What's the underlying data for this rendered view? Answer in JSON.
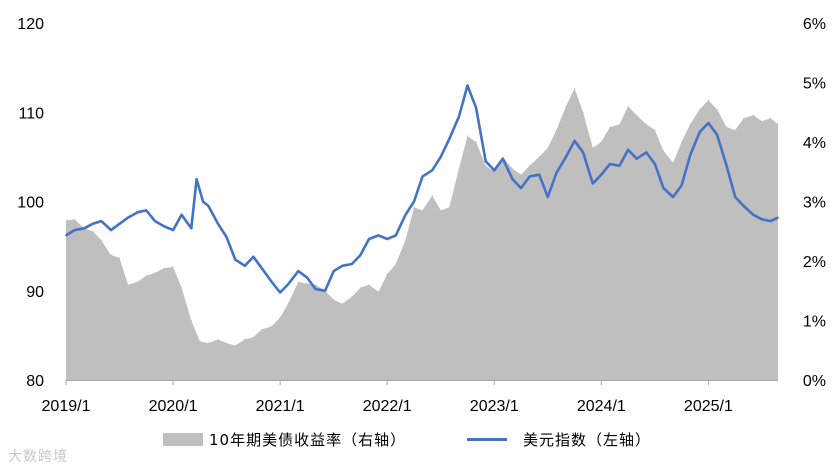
{
  "chart_data": {
    "type": "area",
    "title": "",
    "x_unit": "year",
    "x_range": [
      2019.0,
      2025.65
    ],
    "x_ticks": [
      {
        "x": 2019,
        "label": "2019/1"
      },
      {
        "x": 2020,
        "label": "2020/1"
      },
      {
        "x": 2021,
        "label": "2021/1"
      },
      {
        "x": 2022,
        "label": "2022/1"
      },
      {
        "x": 2023,
        "label": "2023/1"
      },
      {
        "x": 2024,
        "label": "2024/1"
      },
      {
        "x": 2025,
        "label": "2025/1"
      }
    ],
    "y_left": {
      "min": 80,
      "max": 120,
      "ticks": [
        "80",
        "90",
        "100",
        "110",
        "120"
      ]
    },
    "y_right": {
      "min": 0,
      "max": 6,
      "ticks": [
        "0%",
        "1%",
        "2%",
        "3%",
        "4%",
        "5%",
        "6%"
      ]
    },
    "grid": false,
    "legend_position": "bottom",
    "series": [
      {
        "name": "10年期美债收益率（右轴）",
        "type": "area",
        "axis": "right",
        "unit": "%",
        "color": "#bfbfbf",
        "points": [
          [
            2019.0,
            2.68
          ],
          [
            2019.08,
            2.7
          ],
          [
            2019.17,
            2.55
          ],
          [
            2019.25,
            2.5
          ],
          [
            2019.33,
            2.35
          ],
          [
            2019.42,
            2.1
          ],
          [
            2019.5,
            2.05
          ],
          [
            2019.58,
            1.6
          ],
          [
            2019.67,
            1.65
          ],
          [
            2019.75,
            1.75
          ],
          [
            2019.83,
            1.8
          ],
          [
            2019.92,
            1.88
          ],
          [
            2020.0,
            1.9
          ],
          [
            2020.08,
            1.55
          ],
          [
            2020.17,
            1.0
          ],
          [
            2020.25,
            0.65
          ],
          [
            2020.33,
            0.62
          ],
          [
            2020.42,
            0.68
          ],
          [
            2020.5,
            0.62
          ],
          [
            2020.58,
            0.58
          ],
          [
            2020.67,
            0.68
          ],
          [
            2020.75,
            0.72
          ],
          [
            2020.83,
            0.85
          ],
          [
            2020.92,
            0.9
          ],
          [
            2021.0,
            1.05
          ],
          [
            2021.08,
            1.3
          ],
          [
            2021.17,
            1.65
          ],
          [
            2021.25,
            1.62
          ],
          [
            2021.33,
            1.6
          ],
          [
            2021.42,
            1.5
          ],
          [
            2021.5,
            1.35
          ],
          [
            2021.58,
            1.28
          ],
          [
            2021.67,
            1.4
          ],
          [
            2021.75,
            1.55
          ],
          [
            2021.83,
            1.6
          ],
          [
            2021.92,
            1.48
          ],
          [
            2022.0,
            1.78
          ],
          [
            2022.08,
            1.95
          ],
          [
            2022.17,
            2.35
          ],
          [
            2022.25,
            2.9
          ],
          [
            2022.33,
            2.85
          ],
          [
            2022.42,
            3.1
          ],
          [
            2022.5,
            2.85
          ],
          [
            2022.58,
            2.9
          ],
          [
            2022.67,
            3.55
          ],
          [
            2022.75,
            4.1
          ],
          [
            2022.83,
            4.0
          ],
          [
            2022.92,
            3.6
          ],
          [
            2023.0,
            3.5
          ],
          [
            2023.08,
            3.75
          ],
          [
            2023.17,
            3.55
          ],
          [
            2023.25,
            3.45
          ],
          [
            2023.33,
            3.6
          ],
          [
            2023.42,
            3.75
          ],
          [
            2023.5,
            3.9
          ],
          [
            2023.58,
            4.2
          ],
          [
            2023.67,
            4.6
          ],
          [
            2023.75,
            4.9
          ],
          [
            2023.83,
            4.5
          ],
          [
            2023.92,
            3.9
          ],
          [
            2024.0,
            4.0
          ],
          [
            2024.08,
            4.25
          ],
          [
            2024.17,
            4.3
          ],
          [
            2024.25,
            4.6
          ],
          [
            2024.33,
            4.45
          ],
          [
            2024.42,
            4.3
          ],
          [
            2024.5,
            4.2
          ],
          [
            2024.58,
            3.85
          ],
          [
            2024.67,
            3.65
          ],
          [
            2024.75,
            4.0
          ],
          [
            2024.83,
            4.3
          ],
          [
            2024.92,
            4.55
          ],
          [
            2025.0,
            4.7
          ],
          [
            2025.08,
            4.55
          ],
          [
            2025.17,
            4.25
          ],
          [
            2025.25,
            4.2
          ],
          [
            2025.33,
            4.4
          ],
          [
            2025.42,
            4.45
          ],
          [
            2025.5,
            4.35
          ],
          [
            2025.58,
            4.4
          ],
          [
            2025.65,
            4.3
          ]
        ]
      },
      {
        "name": "美元指数（左轴）",
        "type": "line",
        "axis": "left",
        "color": "#4472c4",
        "points": [
          [
            2019.0,
            96.2
          ],
          [
            2019.08,
            96.8
          ],
          [
            2019.17,
            97.0
          ],
          [
            2019.25,
            97.5
          ],
          [
            2019.33,
            97.8
          ],
          [
            2019.42,
            96.8
          ],
          [
            2019.5,
            97.5
          ],
          [
            2019.58,
            98.2
          ],
          [
            2019.67,
            98.8
          ],
          [
            2019.75,
            99.0
          ],
          [
            2019.83,
            97.8
          ],
          [
            2019.92,
            97.2
          ],
          [
            2020.0,
            96.8
          ],
          [
            2020.08,
            98.5
          ],
          [
            2020.17,
            97.0
          ],
          [
            2020.22,
            102.5
          ],
          [
            2020.28,
            100.0
          ],
          [
            2020.33,
            99.5
          ],
          [
            2020.42,
            97.5
          ],
          [
            2020.5,
            96.0
          ],
          [
            2020.58,
            93.5
          ],
          [
            2020.67,
            92.8
          ],
          [
            2020.75,
            93.8
          ],
          [
            2020.83,
            92.5
          ],
          [
            2020.92,
            91.0
          ],
          [
            2021.0,
            89.8
          ],
          [
            2021.08,
            90.8
          ],
          [
            2021.17,
            92.2
          ],
          [
            2021.25,
            91.5
          ],
          [
            2021.33,
            90.2
          ],
          [
            2021.42,
            90.0
          ],
          [
            2021.5,
            92.2
          ],
          [
            2021.58,
            92.8
          ],
          [
            2021.67,
            93.0
          ],
          [
            2021.75,
            94.0
          ],
          [
            2021.83,
            95.8
          ],
          [
            2021.92,
            96.2
          ],
          [
            2022.0,
            95.8
          ],
          [
            2022.08,
            96.2
          ],
          [
            2022.17,
            98.5
          ],
          [
            2022.25,
            100.0
          ],
          [
            2022.33,
            102.8
          ],
          [
            2022.42,
            103.5
          ],
          [
            2022.5,
            105.0
          ],
          [
            2022.58,
            107.0
          ],
          [
            2022.67,
            109.5
          ],
          [
            2022.75,
            113.0
          ],
          [
            2022.83,
            110.5
          ],
          [
            2022.92,
            104.5
          ],
          [
            2023.0,
            103.5
          ],
          [
            2023.08,
            104.8
          ],
          [
            2023.17,
            102.5
          ],
          [
            2023.25,
            101.5
          ],
          [
            2023.33,
            102.8
          ],
          [
            2023.42,
            103.0
          ],
          [
            2023.5,
            100.5
          ],
          [
            2023.58,
            103.2
          ],
          [
            2023.67,
            105.0
          ],
          [
            2023.75,
            106.8
          ],
          [
            2023.83,
            105.5
          ],
          [
            2023.92,
            102.0
          ],
          [
            2024.0,
            103.0
          ],
          [
            2024.08,
            104.2
          ],
          [
            2024.17,
            104.0
          ],
          [
            2024.25,
            105.8
          ],
          [
            2024.33,
            104.8
          ],
          [
            2024.42,
            105.5
          ],
          [
            2024.5,
            104.2
          ],
          [
            2024.58,
            101.5
          ],
          [
            2024.67,
            100.5
          ],
          [
            2024.75,
            101.8
          ],
          [
            2024.83,
            105.2
          ],
          [
            2024.92,
            107.8
          ],
          [
            2025.0,
            108.8
          ],
          [
            2025.08,
            107.5
          ],
          [
            2025.17,
            104.0
          ],
          [
            2025.25,
            100.5
          ],
          [
            2025.33,
            99.5
          ],
          [
            2025.42,
            98.5
          ],
          [
            2025.5,
            98.0
          ],
          [
            2025.58,
            97.8
          ],
          [
            2025.65,
            98.2
          ]
        ]
      }
    ]
  },
  "legend": {
    "area_label": "10年期美债收益率（右轴）",
    "line_label": "美元指数（左轴）"
  },
  "watermark": "大数跨境"
}
